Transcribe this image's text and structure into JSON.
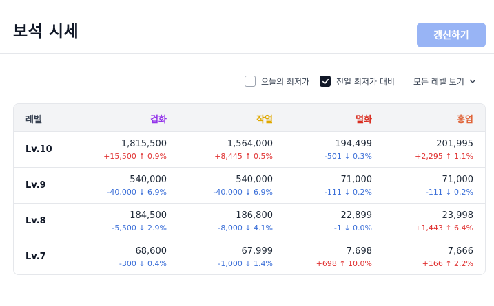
{
  "header": {
    "title": "보석 시세",
    "refresh_label": "갱신하기"
  },
  "controls": {
    "today_low": {
      "label": "오늘의 최저가",
      "checked": false
    },
    "prev_low": {
      "label": "전일 최저가 대비",
      "checked": true
    },
    "level_filter": {
      "label": "모든 레벨 보기"
    }
  },
  "colors": {
    "col1": "#9333ea",
    "col2": "#e0a800",
    "col3": "#d92d20",
    "col4": "#e0653a",
    "up": "#e03131",
    "down": "#3b6fd8"
  },
  "table": {
    "headers": [
      "레벨",
      "겁화",
      "작열",
      "멸화",
      "홍염"
    ],
    "rows": [
      {
        "level": "Lv.10",
        "cells": [
          {
            "price": "1,815,500",
            "change": "+15,500",
            "pct": "0.9%",
            "dir": "up"
          },
          {
            "price": "1,564,000",
            "change": "+8,445",
            "pct": "0.5%",
            "dir": "up"
          },
          {
            "price": "194,499",
            "change": "-501",
            "pct": "0.3%",
            "dir": "down"
          },
          {
            "price": "201,995",
            "change": "+2,295",
            "pct": "1.1%",
            "dir": "up"
          }
        ]
      },
      {
        "level": "Lv.9",
        "cells": [
          {
            "price": "540,000",
            "change": "-40,000",
            "pct": "6.9%",
            "dir": "down"
          },
          {
            "price": "540,000",
            "change": "-40,000",
            "pct": "6.9%",
            "dir": "down"
          },
          {
            "price": "71,000",
            "change": "-111",
            "pct": "0.2%",
            "dir": "down"
          },
          {
            "price": "71,000",
            "change": "-111",
            "pct": "0.2%",
            "dir": "down"
          }
        ]
      },
      {
        "level": "Lv.8",
        "cells": [
          {
            "price": "184,500",
            "change": "-5,500",
            "pct": "2.9%",
            "dir": "down"
          },
          {
            "price": "186,800",
            "change": "-8,000",
            "pct": "4.1%",
            "dir": "down"
          },
          {
            "price": "22,899",
            "change": "-1",
            "pct": "0.0%",
            "dir": "down"
          },
          {
            "price": "23,998",
            "change": "+1,443",
            "pct": "6.4%",
            "dir": "up"
          }
        ]
      },
      {
        "level": "Lv.7",
        "cells": [
          {
            "price": "68,600",
            "change": "-300",
            "pct": "0.4%",
            "dir": "down"
          },
          {
            "price": "67,999",
            "change": "-1,000",
            "pct": "1.4%",
            "dir": "down"
          },
          {
            "price": "7,698",
            "change": "+698",
            "pct": "10.0%",
            "dir": "up"
          },
          {
            "price": "7,666",
            "change": "+166",
            "pct": "2.2%",
            "dir": "up"
          }
        ]
      }
    ]
  }
}
